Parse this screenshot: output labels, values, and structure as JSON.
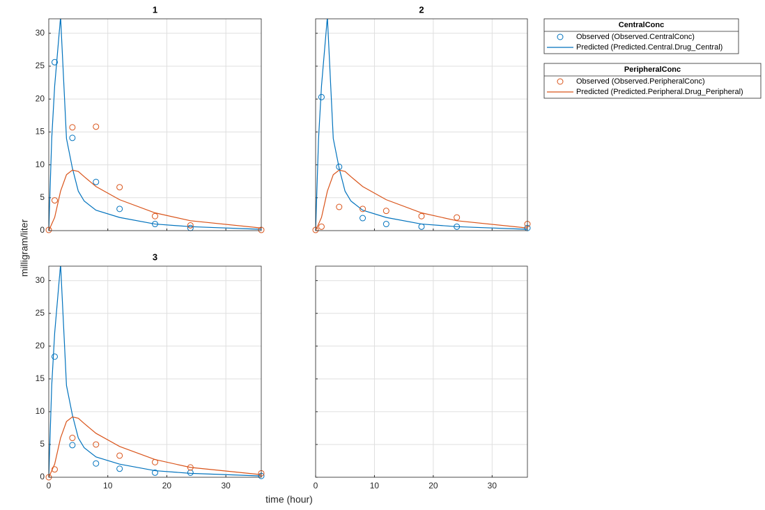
{
  "figure": {
    "xlabel": "time (hour)",
    "ylabel": "milligram/liter"
  },
  "legends": [
    {
      "title": "CentralConc",
      "entries": [
        {
          "label": "Observed (Observed.CentralConc)",
          "color": "#0072bd",
          "marker": true
        },
        {
          "label": "Predicted (Predicted.Central.Drug_Central)",
          "color": "#0072bd",
          "marker": false
        }
      ]
    },
    {
      "title": "PeripheralConc",
      "entries": [
        {
          "label": "Observed (Observed.PeripheralConc)",
          "color": "#d95319",
          "marker": true
        },
        {
          "label": "Predicted (Predicted.Peripheral.Drug_Peripheral)",
          "color": "#d95319",
          "marker": false
        }
      ]
    }
  ],
  "chart_data": [
    {
      "type": "line",
      "title": "1",
      "xlim": [
        0,
        36
      ],
      "ylim": [
        0,
        32.2
      ],
      "xticks": [
        0,
        10,
        20,
        30
      ],
      "yticks": [
        0,
        5,
        10,
        15,
        20,
        25,
        30
      ],
      "grid": true,
      "xticklabels": false,
      "yticklabels": true,
      "series": [
        {
          "color": "#0072bd",
          "marker": true,
          "x": [
            1,
            4,
            8,
            12,
            18,
            24
          ],
          "values": [
            25.6,
            14.1,
            7.4,
            3.3,
            1.0,
            0.4
          ]
        },
        {
          "color": "#0072bd",
          "marker": false,
          "x": [
            0,
            0.5,
            1,
            2,
            3,
            4,
            5,
            6,
            8,
            12,
            18,
            24,
            36
          ],
          "values": [
            0,
            14,
            22,
            32.5,
            14,
            9.5,
            6,
            4.5,
            3.1,
            2,
            1,
            0.6,
            0.2
          ]
        },
        {
          "color": "#d95319",
          "marker": true,
          "x": [
            0,
            1,
            4,
            8,
            12,
            18,
            24,
            36
          ],
          "values": [
            0.1,
            4.6,
            15.7,
            15.8,
            6.6,
            2.2,
            0.8,
            0.1
          ]
        },
        {
          "color": "#d95319",
          "marker": false,
          "x": [
            0,
            1,
            2,
            3,
            4,
            5,
            6,
            8,
            12,
            18,
            24,
            36
          ],
          "values": [
            0,
            2,
            6,
            8.5,
            9.2,
            9,
            8.2,
            6.7,
            4.7,
            2.7,
            1.5,
            0.4
          ]
        }
      ]
    },
    {
      "type": "line",
      "title": "2",
      "xlim": [
        0,
        36
      ],
      "ylim": [
        0,
        32.2
      ],
      "xticks": [
        0,
        10,
        20,
        30
      ],
      "yticks": [
        0,
        5,
        10,
        15,
        20,
        25,
        30
      ],
      "grid": true,
      "xticklabels": false,
      "yticklabels": false,
      "series": [
        {
          "color": "#0072bd",
          "marker": true,
          "x": [
            1,
            4,
            8,
            12,
            18,
            24,
            36
          ],
          "values": [
            20.3,
            9.7,
            1.9,
            1.0,
            0.6,
            0.6,
            0.4
          ]
        },
        {
          "color": "#0072bd",
          "marker": false,
          "x": [
            0,
            0.5,
            1,
            2,
            3,
            4,
            5,
            6,
            8,
            12,
            18,
            24,
            36
          ],
          "values": [
            0,
            14,
            22,
            32.5,
            14,
            9.5,
            6,
            4.5,
            3.1,
            2,
            1,
            0.6,
            0.2
          ]
        },
        {
          "color": "#d95319",
          "marker": true,
          "x": [
            0,
            1,
            4,
            8,
            12,
            18,
            24,
            36
          ],
          "values": [
            0.1,
            0.6,
            3.6,
            3.3,
            3.0,
            2.2,
            2.0,
            1.0
          ]
        },
        {
          "color": "#d95319",
          "marker": false,
          "x": [
            0,
            1,
            2,
            3,
            4,
            5,
            6,
            8,
            12,
            18,
            24,
            36
          ],
          "values": [
            0,
            2,
            6,
            8.5,
            9.2,
            9,
            8.2,
            6.7,
            4.7,
            2.7,
            1.5,
            0.4
          ]
        }
      ]
    },
    {
      "type": "line",
      "title": "3",
      "xlim": [
        0,
        36
      ],
      "ylim": [
        0,
        32.2
      ],
      "xticks": [
        0,
        10,
        20,
        30
      ],
      "yticks": [
        0,
        5,
        10,
        15,
        20,
        25,
        30
      ],
      "grid": true,
      "xticklabels": true,
      "yticklabels": true,
      "series": [
        {
          "color": "#0072bd",
          "marker": true,
          "x": [
            1,
            4,
            8,
            12,
            18,
            24,
            36
          ],
          "values": [
            18.4,
            4.9,
            2.1,
            1.3,
            0.7,
            0.7,
            0.2
          ]
        },
        {
          "color": "#0072bd",
          "marker": false,
          "x": [
            0,
            0.5,
            1,
            2,
            3,
            4,
            5,
            6,
            8,
            12,
            18,
            24,
            36
          ],
          "values": [
            0,
            14,
            22,
            32.5,
            14,
            9.5,
            6,
            4.5,
            3.1,
            2,
            1,
            0.6,
            0.2
          ]
        },
        {
          "color": "#d95319",
          "marker": true,
          "x": [
            0,
            1,
            4,
            8,
            12,
            18,
            24,
            36
          ],
          "values": [
            0,
            1.2,
            6.0,
            5.0,
            3.3,
            2.3,
            1.5,
            0.6
          ]
        },
        {
          "color": "#d95319",
          "marker": false,
          "x": [
            0,
            1,
            2,
            3,
            4,
            5,
            6,
            8,
            12,
            18,
            24,
            36
          ],
          "values": [
            0,
            2,
            6,
            8.5,
            9.2,
            9,
            8.2,
            6.7,
            4.7,
            2.7,
            1.5,
            0.4
          ]
        }
      ]
    },
    {
      "type": "line",
      "xlim": [
        0,
        36
      ],
      "ylim": [
        0,
        32.2
      ],
      "xticks": [
        0,
        10,
        20,
        30
      ],
      "yticks": [
        0,
        5,
        10,
        15,
        20,
        25,
        30
      ],
      "grid": true,
      "xticklabels": true,
      "yticklabels": false,
      "series": []
    }
  ]
}
